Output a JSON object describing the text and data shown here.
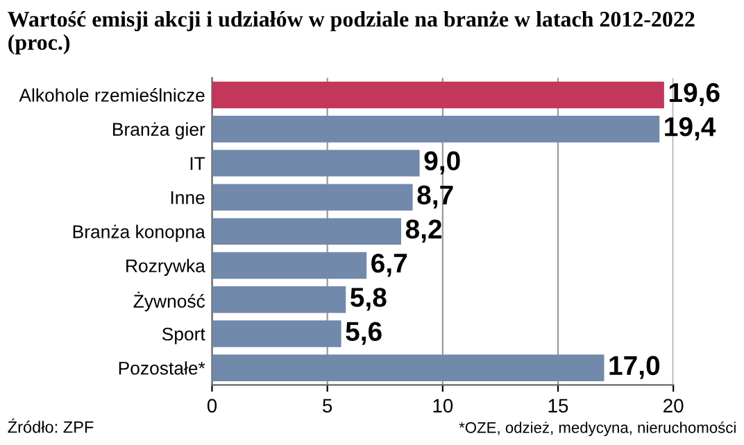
{
  "chart_data": {
    "type": "bar",
    "orientation": "horizontal",
    "title": "Wartość emisji akcji i udziałów w podziale na branże w latach 2012-2022 (proc.)",
    "categories": [
      "Alkohole rzemieślnicze",
      "Branża gier",
      "IT",
      "Inne",
      "Branża konopna",
      "Rozrywka",
      "Żywność",
      "Sport",
      "Pozostałe*"
    ],
    "values": [
      19.6,
      19.4,
      9.0,
      8.7,
      8.2,
      6.7,
      5.8,
      5.6,
      17.0
    ],
    "value_labels": [
      "19,6",
      "19,4",
      "9,0",
      "8,7",
      "8,2",
      "6,7",
      "5,8",
      "5,6",
      "17,0"
    ],
    "colors": [
      "#c2375a",
      "#7189ab",
      "#7189ab",
      "#7189ab",
      "#7189ab",
      "#7189ab",
      "#7189ab",
      "#7189ab",
      "#7189ab"
    ],
    "xlim": [
      0,
      20
    ],
    "xticks": [
      0,
      5,
      10,
      15,
      20
    ],
    "grid": "x",
    "annotations": [
      "Źródło: ZPF",
      "*OZE, odzież, medycyna, nieruchomości"
    ]
  }
}
